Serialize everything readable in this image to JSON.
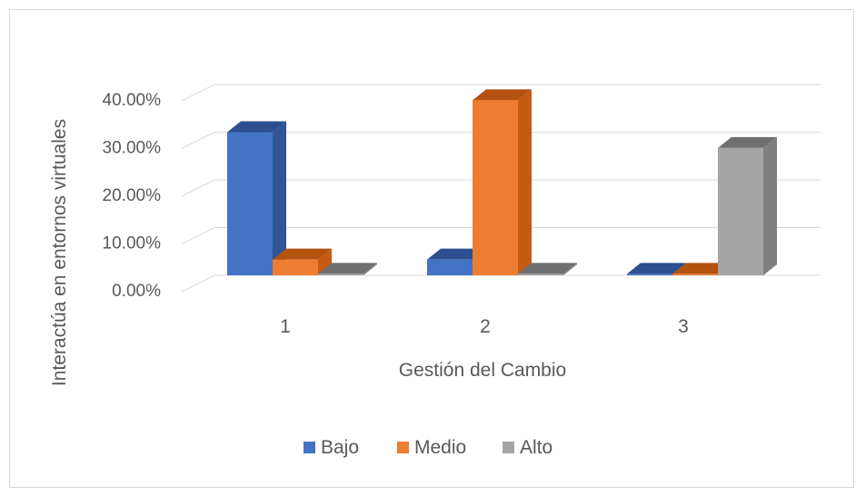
{
  "chart_data": {
    "type": "bar",
    "categories": [
      "1",
      "2",
      "3"
    ],
    "series": [
      {
        "name": "Bajo",
        "values": [
          30.0,
          3.3,
          0.3
        ],
        "color": "#4472c4",
        "side": "#2f5597",
        "top": "#2b4f90"
      },
      {
        "name": "Medio",
        "values": [
          3.3,
          36.7,
          0.3
        ],
        "color": "#ed7d31",
        "side": "#c55a11",
        "top": "#b4520f"
      },
      {
        "name": "Alto",
        "values": [
          0.3,
          0.3,
          26.7
        ],
        "color": "#a5a5a5",
        "side": "#7f7f7f",
        "top": "#6f6f6f"
      }
    ],
    "ylim": [
      0,
      40
    ],
    "yticks": [
      "0.00%",
      "10.00%",
      "20.00%",
      "30.00%",
      "40.00%"
    ],
    "xlabel": "Gestión del Cambio",
    "ylabel": "Interactúa en entornos virtuales",
    "grid": true,
    "legend_position": "bottom"
  }
}
